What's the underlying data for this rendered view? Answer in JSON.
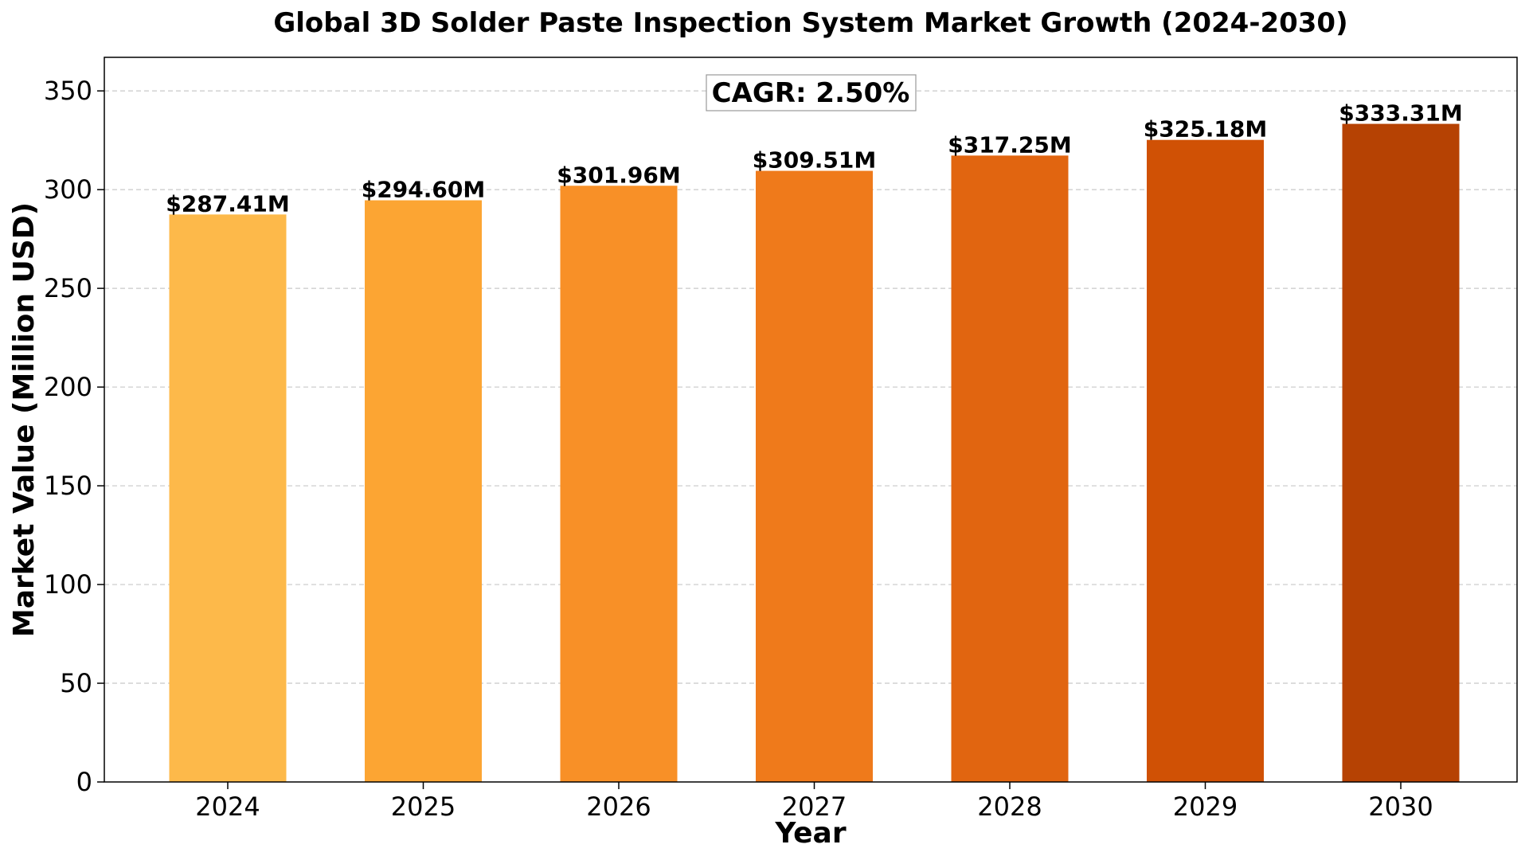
{
  "chart_data": {
    "type": "bar",
    "title": "Global 3D Solder Paste Inspection System Market Growth (2024-2030)",
    "xlabel": "Year",
    "ylabel": "Market Value (Million USD)",
    "categories": [
      "2024",
      "2025",
      "2026",
      "2027",
      "2028",
      "2029",
      "2030"
    ],
    "values": [
      287.41,
      294.6,
      301.96,
      309.51,
      317.25,
      325.18,
      333.31
    ],
    "data_labels": [
      "$287.41M",
      "$294.60M",
      "$301.96M",
      "$309.51M",
      "$317.25M",
      "$325.18M",
      "$333.31M"
    ],
    "colors": [
      "#fdb94a",
      "#fca533",
      "#f89027",
      "#ef7a1b",
      "#e16510",
      "#d05105",
      "#b64203"
    ],
    "ylim": [
      0,
      367
    ],
    "yticks": [
      0,
      50,
      100,
      150,
      200,
      250,
      300,
      350
    ],
    "grid": "y-dashed",
    "annotation": "CAGR: 2.50%"
  }
}
